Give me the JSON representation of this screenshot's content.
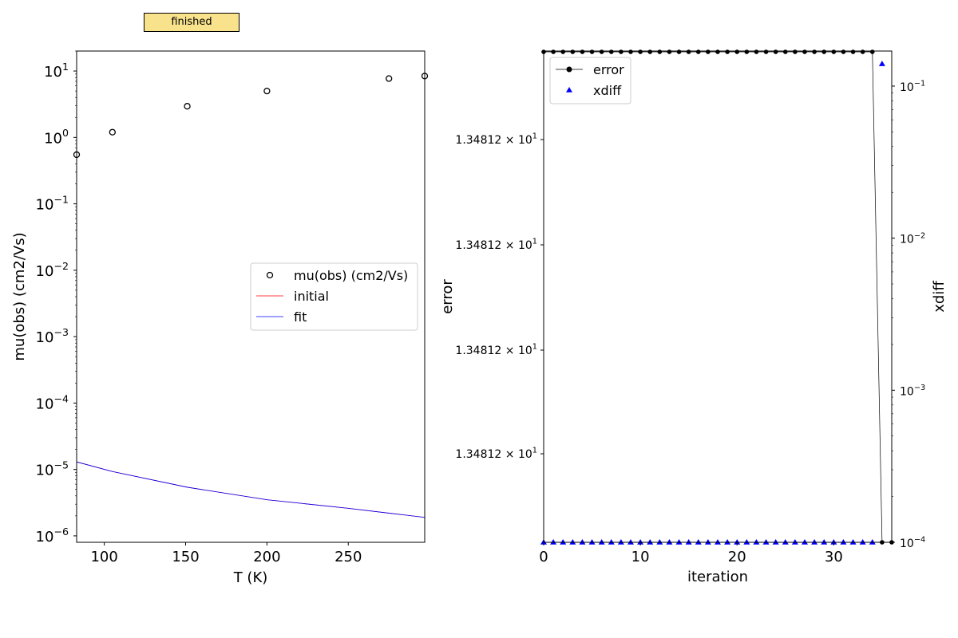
{
  "status": {
    "label": "finished",
    "color": "#f8e28c"
  },
  "chart_data": [
    {
      "type": "scatter",
      "title": "",
      "xlabel": "T (K)",
      "ylabel": "mu(obs) (cm2/Vs)",
      "xscale": "linear",
      "yscale": "log",
      "xlim": [
        83,
        297
      ],
      "ylim": [
        8e-07,
        20
      ],
      "xticks": [
        100,
        150,
        200,
        250
      ],
      "yticks": [
        {
          "value": 1e-06,
          "base": "10",
          "exp": "−6"
        },
        {
          "value": 1e-05,
          "base": "10",
          "exp": "−5"
        },
        {
          "value": 0.0001,
          "base": "10",
          "exp": "−4"
        },
        {
          "value": 0.001,
          "base": "10",
          "exp": "−3"
        },
        {
          "value": 0.01,
          "base": "10",
          "exp": "−2"
        },
        {
          "value": 0.1,
          "base": "10",
          "exp": "−1"
        },
        {
          "value": 1,
          "base": "10",
          "exp": "0"
        },
        {
          "value": 10,
          "base": "10",
          "exp": "1"
        }
      ],
      "legend": "center-right",
      "grid": false,
      "series": [
        {
          "name": "mu(obs) (cm2/Vs)",
          "kind": "markers",
          "marker": "open-circle",
          "color": "#000000",
          "x": [
            83,
            105,
            151,
            200,
            275,
            297
          ],
          "y": [
            0.55,
            1.2,
            2.95,
            5.0,
            7.7,
            8.4
          ]
        },
        {
          "name": "initial",
          "kind": "line",
          "color": "#ff0000",
          "x": [
            83,
            105,
            151,
            200,
            250,
            275,
            297
          ],
          "y": [
            1.3e-05,
            9.3e-06,
            5.4e-06,
            3.5e-06,
            2.6e-06,
            2.2e-06,
            1.9e-06
          ]
        },
        {
          "name": "fit",
          "kind": "line",
          "color": "#0000ff",
          "x": [
            83,
            105,
            151,
            200,
            250,
            275,
            297
          ],
          "y": [
            1.3e-05,
            9.3e-06,
            5.4e-06,
            3.5e-06,
            2.6e-06,
            2.2e-06,
            1.9e-06
          ]
        }
      ]
    },
    {
      "type": "line",
      "title": "",
      "xlabel": "iteration",
      "ylabel": "error",
      "y2label": "xdiff",
      "xlim": [
        0,
        36
      ],
      "xticks": [
        0,
        10,
        20,
        30
      ],
      "y_tick_labels": [
        {
          "mantissa": "1.34812 × 10",
          "exp": "1"
        },
        {
          "mantissa": "1.34812 × 10",
          "exp": "1"
        },
        {
          "mantissa": "1.34812 × 10",
          "exp": "1"
        },
        {
          "mantissa": "1.34812 × 10",
          "exp": "1"
        }
      ],
      "y2scale": "log",
      "y2lim": [
        0.0001,
        0.17
      ],
      "y2ticks": [
        {
          "value": 0.0001,
          "base": "10",
          "exp": "−4"
        },
        {
          "value": 0.001,
          "base": "10",
          "exp": "−3"
        },
        {
          "value": 0.01,
          "base": "10",
          "exp": "−2"
        },
        {
          "value": 0.1,
          "base": "10",
          "exp": "−1"
        }
      ],
      "legend": "upper-left",
      "grid": false,
      "series": [
        {
          "name": "error",
          "kind": "line-markers",
          "marker": "filled-circle",
          "color": "#000000",
          "axis": "left",
          "x": [
            0,
            1,
            2,
            3,
            4,
            5,
            6,
            7,
            8,
            9,
            10,
            11,
            12,
            13,
            14,
            15,
            16,
            17,
            18,
            19,
            20,
            21,
            22,
            23,
            24,
            25,
            26,
            27,
            28,
            29,
            30,
            31,
            32,
            33,
            34,
            35,
            36
          ],
          "y_level": [
            1,
            1,
            1,
            1,
            1,
            1,
            1,
            1,
            1,
            1,
            1,
            1,
            1,
            1,
            1,
            1,
            1,
            1,
            1,
            1,
            1,
            1,
            1,
            1,
            1,
            1,
            1,
            1,
            1,
            1,
            1,
            1,
            1,
            1,
            1,
            0,
            0
          ]
        },
        {
          "name": "xdiff",
          "kind": "markers",
          "marker": "filled-triangle",
          "color": "#0000ff",
          "axis": "right",
          "x": [
            0,
            1,
            2,
            3,
            4,
            5,
            6,
            7,
            8,
            9,
            10,
            11,
            12,
            13,
            14,
            15,
            16,
            17,
            18,
            19,
            20,
            21,
            22,
            23,
            24,
            25,
            26,
            27,
            28,
            29,
            30,
            31,
            32,
            33,
            34,
            35
          ],
          "y": [
            0.0001,
            0.0001,
            0.0001,
            0.0001,
            0.0001,
            0.0001,
            0.0001,
            0.0001,
            0.0001,
            0.0001,
            0.0001,
            0.0001,
            0.0001,
            0.0001,
            0.0001,
            0.0001,
            0.0001,
            0.0001,
            0.0001,
            0.0001,
            0.0001,
            0.0001,
            0.0001,
            0.0001,
            0.0001,
            0.0001,
            0.0001,
            0.0001,
            0.0001,
            0.0001,
            0.0001,
            0.0001,
            0.0001,
            0.0001,
            0.0001,
            0.14
          ]
        }
      ]
    }
  ]
}
